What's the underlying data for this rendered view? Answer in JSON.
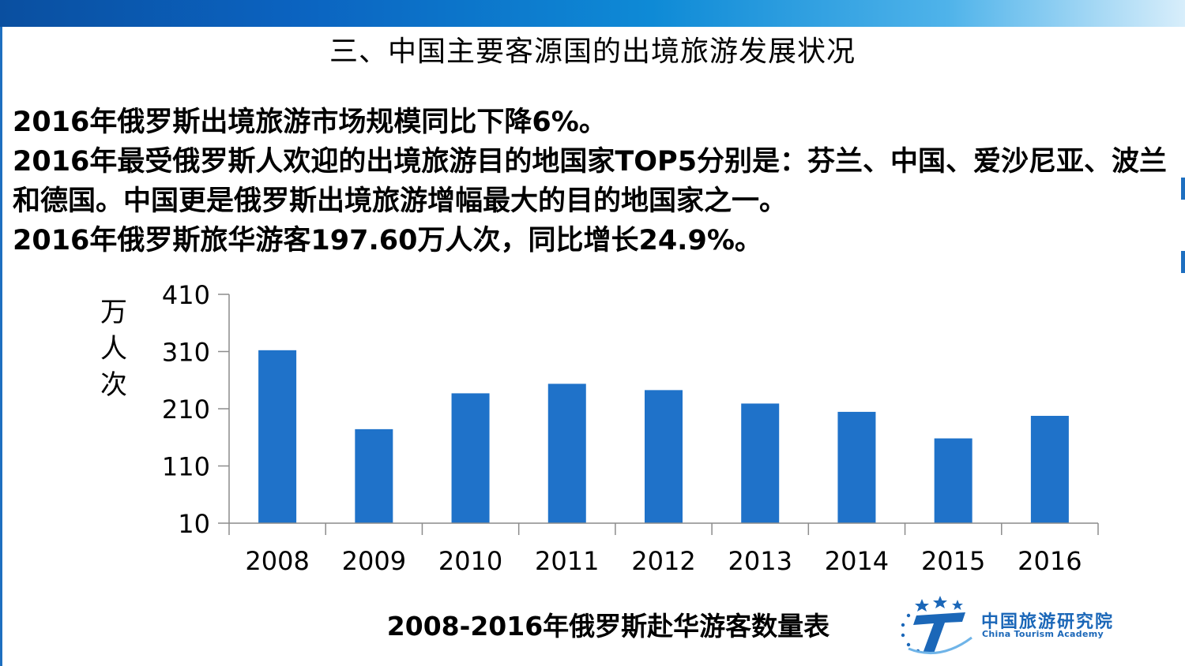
{
  "slide": {
    "title": "三、中国主要客源国的出境旅游发展状况",
    "lines": [
      "2016年俄罗斯出境旅游市场规模同比下降6%。",
      "2016年最受俄罗斯人欢迎的出境旅游目的地国家TOP5分别是：芬兰、中国、爱沙尼亚、波兰和德国。中国更是俄罗斯出境旅游增幅最大的目的地国家之一。",
      "2016年俄罗斯旅华游客197.60万人次，同比增长24.9%。"
    ]
  },
  "logo": {
    "name_cn": "中国旅游研究院",
    "name_en": "China Tourism Academy"
  },
  "colors": {
    "bar": "#1f72c9",
    "accent": "#1b67b8"
  },
  "chart_data": {
    "type": "bar",
    "title": "2008-2016年俄罗斯赴华游客数量表",
    "ylabel": "万人次",
    "ylabel_chars": [
      "万",
      "人",
      "次"
    ],
    "categories": [
      "2008",
      "2009",
      "2010",
      "2011",
      "2012",
      "2013",
      "2014",
      "2015",
      "2016"
    ],
    "values": [
      312.3,
      174.3,
      237.0,
      253.6,
      242.6,
      219.1,
      204.6,
      158.2,
      197.6
    ],
    "ylim": [
      10,
      410
    ],
    "yticks": [
      "410",
      "310",
      "210",
      "110",
      "10"
    ],
    "grid": false,
    "legend": "none"
  }
}
